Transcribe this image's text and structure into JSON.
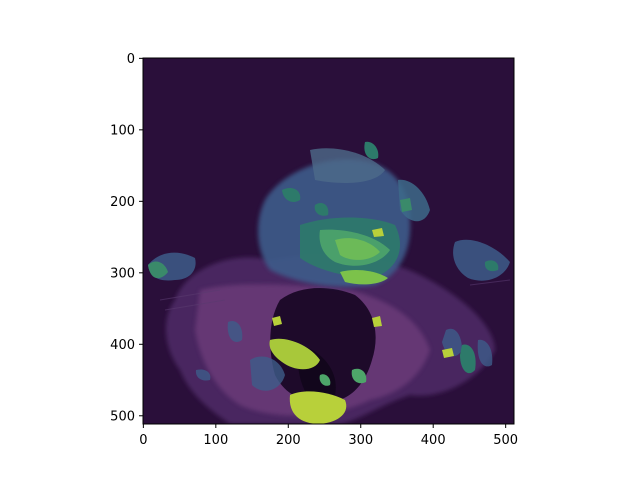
{
  "figure": {
    "image_description_colormap": "viridis",
    "x_ticks": [
      "0",
      "100",
      "200",
      "300",
      "400",
      "500"
    ],
    "y_ticks": [
      "0",
      "100",
      "200",
      "300",
      "400",
      "500"
    ],
    "x_tick_values": [
      0,
      100,
      200,
      300,
      400,
      500
    ],
    "y_tick_values": [
      0,
      100,
      200,
      300,
      400,
      500
    ],
    "image_extent": [
      0,
      512
    ]
  },
  "colors": {
    "background": "#2a0f3a",
    "overlay_blue": "#3d5c8a",
    "overlay_teal": "#2d7a6a",
    "overlay_green": "#4ea56a",
    "overlay_yellow": "#a8c83a",
    "tissue_purple": "#6a3a78"
  }
}
